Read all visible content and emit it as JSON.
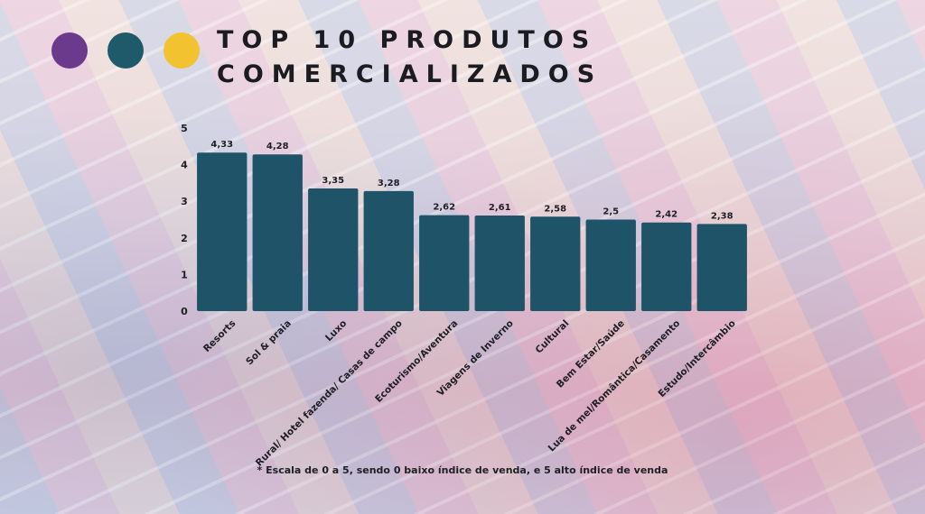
{
  "header": {
    "title_line1": "TOP 10 PRODUTOS",
    "title_line2": "COMERCIALIZADOS"
  },
  "decor": {
    "dot_colors": [
      "#6b3a8c",
      "#1e5a6a",
      "#f2c230"
    ]
  },
  "colors": {
    "bar": "#1f5368",
    "text": "#1e1e24"
  },
  "footnote": "* Escala de 0 a 5, sendo 0 baixo índice de venda, e 5 alto índice de venda",
  "chart_data": {
    "type": "bar",
    "categories": [
      "Resorts",
      "Sol & praia",
      "Luxo",
      "Rural/ Hotel fazenda/ Casas de campo",
      "Ecoturismo/Aventura",
      "Viagens de Inverno",
      "Cultural",
      "Bem Estar/Saúde",
      "Lua de mel/Romântica/Casamento",
      "Estudo/Intercâmbio"
    ],
    "values": [
      4.33,
      4.28,
      3.35,
      3.28,
      2.62,
      2.61,
      2.58,
      2.5,
      2.42,
      2.38
    ],
    "value_labels": [
      "4,33",
      "4,28",
      "3,35",
      "3,28",
      "2,62",
      "2,61",
      "2,58",
      "2,5",
      "2,42",
      "2,38"
    ],
    "ylim": [
      0,
      5
    ],
    "yticks": [
      0,
      1,
      2,
      3,
      4,
      5
    ],
    "grid": false,
    "legend": "none"
  }
}
